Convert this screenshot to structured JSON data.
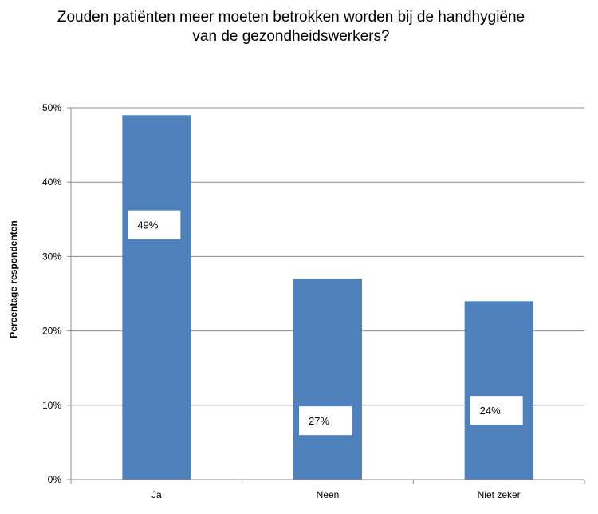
{
  "chart_data": {
    "type": "bar",
    "title_lines": [
      "Zouden patiënten meer moeten betrokken worden bij de handhygiëne",
      "van de gezondheidswerkers?"
    ],
    "xlabel": "",
    "ylabel": "Percentage respondenten",
    "categories": [
      "Ja",
      "Neen",
      "Niet zeker"
    ],
    "values": [
      49,
      27,
      24
    ],
    "data_labels": [
      "49%",
      "27%",
      "24%"
    ],
    "ylim": [
      0,
      50
    ],
    "yticks": [
      0,
      10,
      20,
      30,
      40,
      50
    ],
    "ytick_labels": [
      "0%",
      "10%",
      "20%",
      "30%",
      "40%",
      "50%"
    ],
    "grid": true,
    "legend": "none",
    "bar_color": "#4F81BD",
    "gridline_color": "#8C8C8C"
  }
}
